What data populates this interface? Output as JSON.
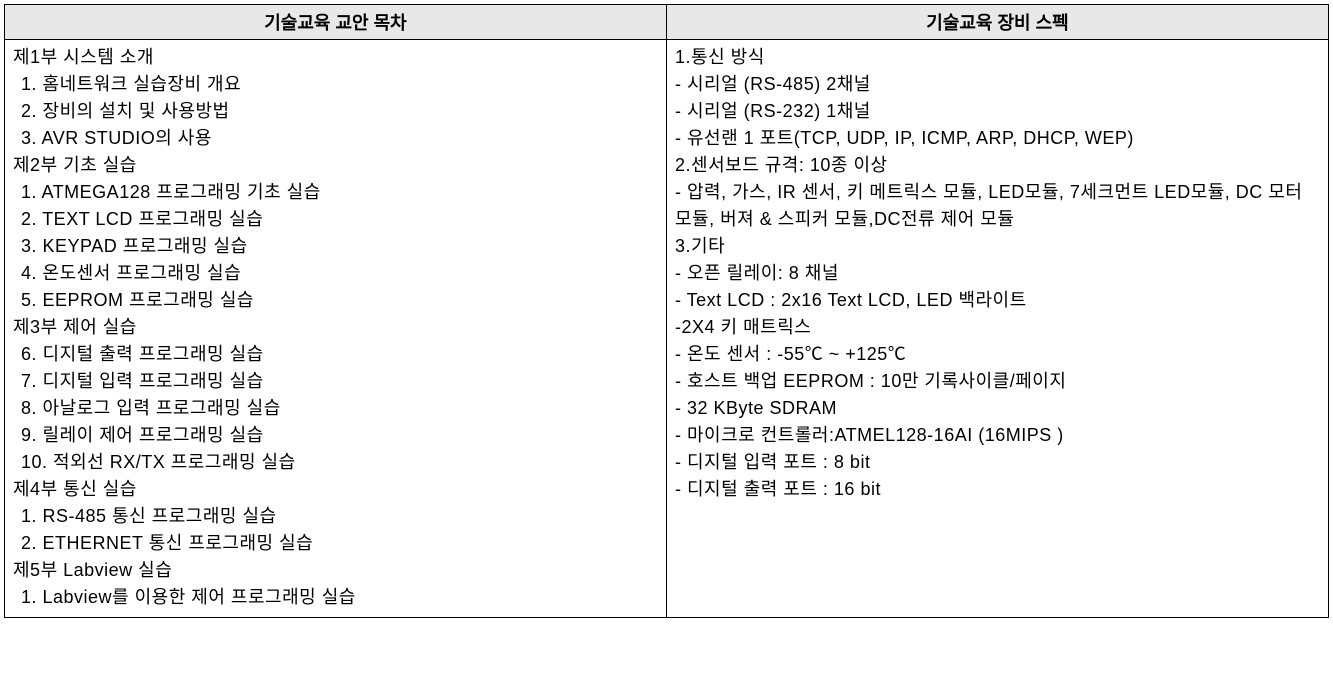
{
  "table": {
    "headers": {
      "left": "기술교육 교안 목차",
      "right": "기술교육 장비 스펙"
    },
    "left_column": {
      "sections": [
        {
          "title": "제1부 시스템 소개",
          "items": [
            "1. 홈네트워크 실습장비 개요",
            "2.  장비의 설치 및 사용방법",
            "3. AVR STUDIO의 사용"
          ]
        },
        {
          "title": "제2부 기초 실습",
          "items": [
            "1. ATMEGA128 프로그래밍 기초 실습",
            "2. TEXT LCD 프로그래밍 실습",
            "3. KEYPAD 프로그래밍 실습",
            "4. 온도센서 프로그래밍 실습",
            "5. EEPROM 프로그래밍 실습"
          ]
        },
        {
          "title": "제3부 제어 실습",
          "items": [
            "6. 디지털 출력 프로그래밍 실습",
            "7. 디지털 입력 프로그래밍 실습",
            "8. 아날로그 입력 프로그래밍 실습",
            "9. 릴레이 제어 프로그래밍 실습",
            "10. 적외선 RX/TX 프로그래밍 실습"
          ]
        },
        {
          "title": "제4부 통신 실습",
          "items": [
            "1. RS-485 통신 프로그래밍 실습",
            "2. ETHERNET 통신 프로그래밍 실습"
          ]
        },
        {
          "title": "제5부 Labview 실습",
          "items": [
            "1. Labview를 이용한 제어 프로그래밍 실습"
          ]
        }
      ]
    },
    "right_column": {
      "sections": [
        {
          "title": "1.통신 방식",
          "items": [
            "- 시리얼 (RS-485) 2채널",
            "- 시리얼 (RS-232) 1채널",
            "- 유선랜 1 포트(TCP, UDP, IP, ICMP, ARP, DHCP, WEP)"
          ]
        },
        {
          "title": "2.센서보드 규격: 10종 이상",
          "items": [
            "- 압력, 가스, IR 센서, 키 메트릭스 모듈, LED모듈, 7세크먼트 LED모듈, DC 모터 모듈, 버져 & 스피커 모듈,DC전류 제어 모듈"
          ]
        },
        {
          "title": "3.기타",
          "items": [
            "- 오픈 릴레이: 8 채널",
            "- Text  LCD : 2x16 Text LCD, LED 백라이트",
            "-2X4 키 매트릭스",
            "- 온도 센서 : -55℃ ~ +125℃",
            "- 호스트 백업 EEPROM : 10만 기록사이클/페이지",
            "- 32 KByte SDRAM",
            "- 마이크로 컨트롤러:ATMEL128-16AI (16MIPS )",
            "- 디지털 입력 포트 : 8 bit",
            "- 디지털 출력 포트 : 16 bit"
          ]
        }
      ]
    }
  },
  "style": {
    "header_bg": "#e8e8e8",
    "border_color": "#000000",
    "font_size_base": 18,
    "font_family": "Malgun Gothic"
  }
}
